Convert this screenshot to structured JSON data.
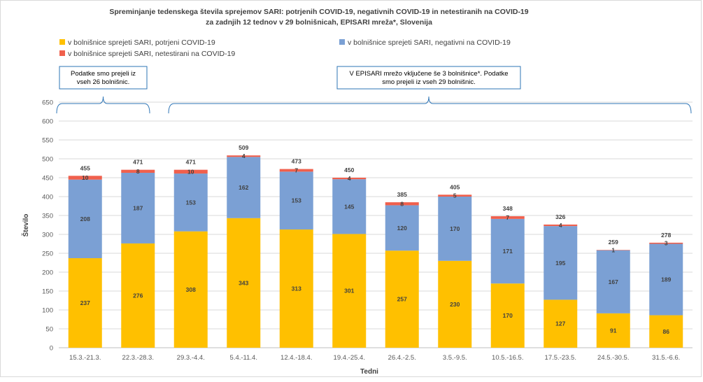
{
  "chart_data": {
    "type": "bar",
    "stacked": true,
    "title": "Spreminjanje tedenskega števila sprejemov SARI: potrjenih COVID-19, negativnih COVID-19 in netestiranih na COVID-19",
    "subtitle": "za zadnjih 12 tednov v 29 bolnišnicah, EPISARI mreža*, Slovenija",
    "xlabel": "Tedni",
    "ylabel": "Število",
    "ylim": [
      0,
      650
    ],
    "yticks": [
      0,
      50,
      100,
      150,
      200,
      250,
      300,
      350,
      400,
      450,
      500,
      550,
      600,
      650
    ],
    "grid": true,
    "legend_position": "top",
    "categories": [
      "15.3.-21.3.",
      "22.3.-28.3.",
      "29.3.-4.4.",
      "5.4.-11.4.",
      "12.4.-18.4.",
      "19.4.-25.4.",
      "26.4.-2.5.",
      "3.5.-9.5.",
      "10.5.-16.5.",
      "17.5.-23.5.",
      "24.5.-30.5.",
      "31.5.-6.6."
    ],
    "series": [
      {
        "name": "v bolnišnice sprejeti SARI, potrjeni COVID-19",
        "color": "#FFC000",
        "values": [
          237,
          276,
          308,
          343,
          313,
          301,
          257,
          230,
          170,
          127,
          91,
          86
        ]
      },
      {
        "name": "v bolnišnice sprejeti SARI, negativni na COVID-19",
        "color": "#7BA0D4",
        "values": [
          208,
          187,
          153,
          162,
          153,
          145,
          120,
          170,
          171,
          195,
          167,
          189
        ]
      },
      {
        "name": "v bolnišnice sprejeti SARI, netestirani na COVID-19",
        "color": "#F0604D",
        "values": [
          10,
          8,
          10,
          4,
          7,
          4,
          8,
          5,
          7,
          4,
          1,
          3
        ]
      }
    ],
    "totals": [
      455,
      471,
      471,
      509,
      473,
      450,
      385,
      405,
      348,
      326,
      259,
      278
    ],
    "annotations": [
      {
        "text_lines": [
          "Podatke smo prejeli iz",
          "vseh 26 bolnišnic."
        ],
        "from_category": 0,
        "to_category": 1
      },
      {
        "text_lines": [
          "V EPISARI mrežo vključene še 3 bolnišnice*. Podatke",
          "smo prejeli iz vseh 29 bolnišnic."
        ],
        "from_category": 2,
        "to_category": 11
      }
    ]
  }
}
